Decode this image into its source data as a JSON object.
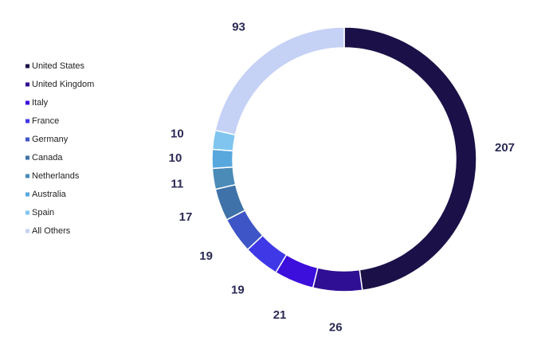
{
  "chart_data": {
    "type": "donut",
    "categories": [
      "United States",
      "United Kingdom",
      "Italy",
      "France",
      "Germany",
      "Canada",
      "Netherlands",
      "Australia",
      "Spain",
      "All Others"
    ],
    "values": [
      207,
      26,
      21,
      19,
      19,
      17,
      11,
      10,
      10,
      93
    ],
    "colors": [
      "#1b1148",
      "#2f0f93",
      "#3c0fdc",
      "#3f38e6",
      "#3d55c6",
      "#3f72a8",
      "#4a8bb8",
      "#58a8de",
      "#7fc5ef",
      "#c6d1f6"
    ],
    "legend": "left"
  }
}
